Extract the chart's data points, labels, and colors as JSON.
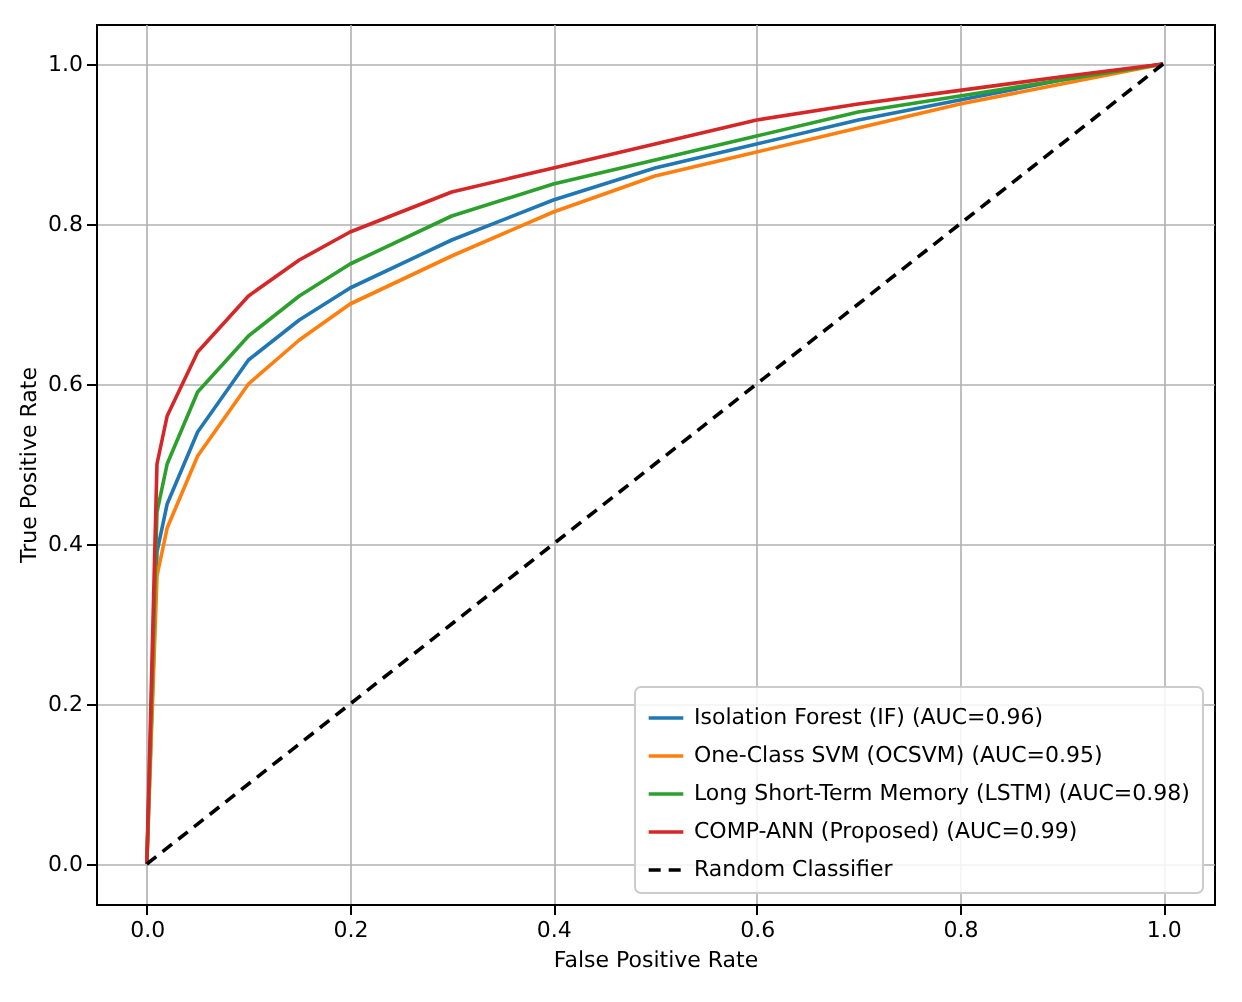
{
  "chart_data": {
    "type": "line",
    "xlabel": "False Positive Rate",
    "ylabel": "True Positive Rate",
    "x": [
      0,
      0.01,
      0.02,
      0.05,
      0.1,
      0.15,
      0.2,
      0.3,
      0.4,
      0.5,
      0.6,
      0.7,
      0.8,
      0.9,
      1.0
    ],
    "series": [
      {
        "name": "Isolation Forest (IF) (AUC=0.96)",
        "color": "#1f77b4",
        "values": [
          0,
          0.39,
          0.45,
          0.54,
          0.63,
          0.68,
          0.72,
          0.78,
          0.83,
          0.87,
          0.9,
          0.93,
          0.955,
          0.98,
          1.0
        ]
      },
      {
        "name": "One-Class SVM (OCSVM) (AUC=0.95)",
        "color": "#ff7f0e",
        "values": [
          0,
          0.36,
          0.42,
          0.51,
          0.6,
          0.655,
          0.7,
          0.76,
          0.815,
          0.86,
          0.89,
          0.92,
          0.95,
          0.975,
          1.0
        ]
      },
      {
        "name": "Long Short-Term Memory (LSTM) (AUC=0.98)",
        "color": "#2ca02c",
        "values": [
          0,
          0.44,
          0.5,
          0.59,
          0.66,
          0.71,
          0.75,
          0.81,
          0.85,
          0.88,
          0.91,
          0.94,
          0.96,
          0.98,
          1.0
        ]
      },
      {
        "name": "COMP-ANN (Proposed) (AUC=0.99)",
        "color": "#d62728",
        "values": [
          0,
          0.5,
          0.56,
          0.64,
          0.71,
          0.755,
          0.79,
          0.84,
          0.87,
          0.9,
          0.93,
          0.95,
          0.967,
          0.984,
          1.0
        ]
      },
      {
        "name": "Random Classifier",
        "color": "#000000",
        "line_style": "dashed",
        "x": [
          0,
          1
        ],
        "values": [
          0,
          1
        ]
      }
    ],
    "xlim": [
      -0.05,
      1.05
    ],
    "ylim": [
      -0.05,
      1.05
    ],
    "xticks": [
      {
        "value": 0,
        "label": "0.0"
      },
      0.2,
      0.4,
      0.6,
      0.8,
      {
        "value": 1,
        "label": "1.0"
      }
    ],
    "yticks": [
      {
        "value": 0,
        "label": "0.0"
      },
      0.2,
      0.4,
      0.6,
      0.8,
      {
        "value": 1,
        "label": "1.0"
      }
    ],
    "grid": true,
    "legend": "bottom right",
    "line_style": "solid",
    "marker": "none"
  }
}
